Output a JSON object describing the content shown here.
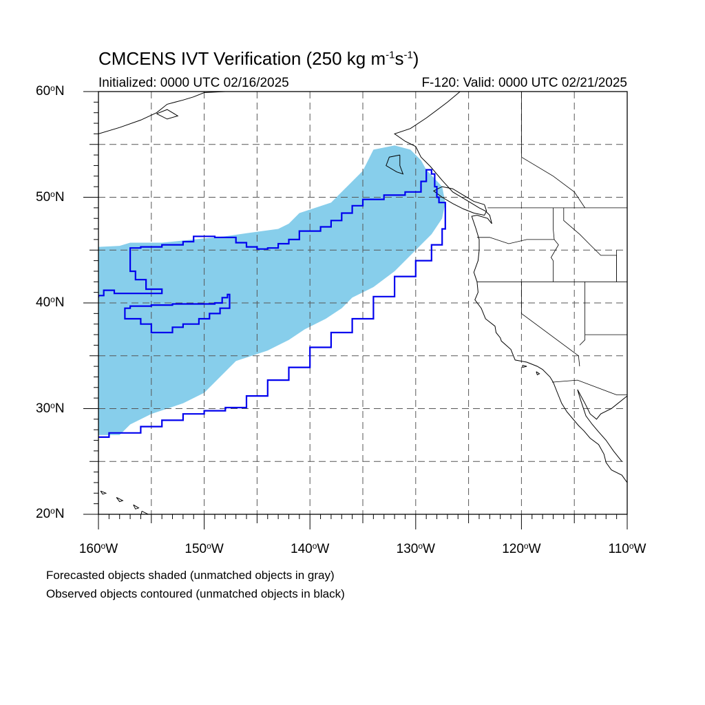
{
  "title": {
    "prefix": "CMCENS IVT Verification (250 kg m",
    "exp1": "-1",
    "mid": "s",
    "exp2": "-1",
    "suffix": ")"
  },
  "subtitle_left": "Initialized: 0000 UTC 02/16/2025",
  "subtitle_right": "F-120: Valid: 0000 UTC 02/21/2025",
  "lat_labels": [
    {
      "value": 60,
      "text": "60",
      "hemi": "N"
    },
    {
      "value": 50,
      "text": "50",
      "hemi": "N"
    },
    {
      "value": 40,
      "text": "40",
      "hemi": "N"
    },
    {
      "value": 30,
      "text": "30",
      "hemi": "N"
    },
    {
      "value": 20,
      "text": "20",
      "hemi": "N"
    }
  ],
  "lon_labels": [
    {
      "value": -160,
      "text": "160",
      "hemi": "W"
    },
    {
      "value": -150,
      "text": "150",
      "hemi": "W"
    },
    {
      "value": -140,
      "text": "140",
      "hemi": "W"
    },
    {
      "value": -130,
      "text": "130",
      "hemi": "W"
    },
    {
      "value": -120,
      "text": "120",
      "hemi": "W"
    },
    {
      "value": -110,
      "text": "110",
      "hemi": "W"
    }
  ],
  "notes": {
    "line1": "Forecasted objects shaded (unmatched objects in gray)",
    "line2": "Observed objects contoured (unmatched objects in black)"
  },
  "map_extent": {
    "lon_min": -160,
    "lon_max": -110,
    "lat_min": 20,
    "lat_max": 60
  },
  "colors": {
    "forecast_fill": "#87ceeb",
    "observed_contour": "#0000ee",
    "coastline": "#000000",
    "grid": "#555555"
  },
  "forecast_object": [
    [
      -160,
      45.3
    ],
    [
      -158,
      45.4
    ],
    [
      -157,
      45.7
    ],
    [
      -154,
      45.7
    ],
    [
      -151,
      46.0
    ],
    [
      -148,
      46.3
    ],
    [
      -146,
      46.6
    ],
    [
      -143,
      47.0
    ],
    [
      -142,
      47.5
    ],
    [
      -141,
      48.5
    ],
    [
      -139.5,
      49.0
    ],
    [
      -138,
      49.5
    ],
    [
      -137,
      50.5
    ],
    [
      -136,
      51.5
    ],
    [
      -135,
      52.5
    ],
    [
      -134,
      54.5
    ],
    [
      -132,
      54.9
    ],
    [
      -130.5,
      54.5
    ],
    [
      -129.5,
      53.5
    ],
    [
      -129,
      52.6
    ],
    [
      -127.5,
      51.0
    ],
    [
      -127.2,
      49.5
    ],
    [
      -127.5,
      48.0
    ],
    [
      -128.5,
      46.5
    ],
    [
      -130,
      45.0
    ],
    [
      -132,
      43.0
    ],
    [
      -134,
      41.5
    ],
    [
      -136,
      40.5
    ],
    [
      -137,
      39.5
    ],
    [
      -138.5,
      38.5
    ],
    [
      -140.5,
      37.5
    ],
    [
      -142,
      36.5
    ],
    [
      -144,
      35.5
    ],
    [
      -147,
      34.5
    ],
    [
      -149,
      32.5
    ],
    [
      -150,
      31.5
    ],
    [
      -152,
      30.5
    ],
    [
      -155,
      29.5
    ],
    [
      -157,
      28.5
    ],
    [
      -158,
      27.5
    ],
    [
      -160,
      27.5
    ]
  ],
  "observed_main": [
    [
      -160,
      27.3
    ],
    [
      -159,
      27.7
    ],
    [
      -156,
      28.3
    ],
    [
      -154,
      28.9
    ],
    [
      -152,
      29.5
    ],
    [
      -150,
      29.8
    ],
    [
      -148,
      30.1
    ],
    [
      -146,
      31.2
    ],
    [
      -144,
      32.7
    ],
    [
      -142,
      33.9
    ],
    [
      -140,
      35.8
    ],
    [
      -138,
      37.2
    ],
    [
      -136,
      38.5
    ],
    [
      -134,
      40.6
    ],
    [
      -132,
      42.5
    ],
    [
      -130,
      44.0
    ],
    [
      -128.5,
      45.5
    ],
    [
      -127.5,
      47.0
    ],
    [
      -127.2,
      48.5
    ],
    [
      -127.2,
      49.5
    ],
    [
      -127.8,
      50.0
    ],
    [
      -128,
      51.0
    ],
    [
      -128.2,
      52.2
    ],
    [
      -128.5,
      52.6
    ],
    [
      -129,
      51.5
    ],
    [
      -129.5,
      50.5
    ],
    [
      -131,
      50.2
    ],
    [
      -133,
      49.8
    ],
    [
      -135,
      49.2
    ],
    [
      -136,
      48.5
    ],
    [
      -137,
      47.8
    ],
    [
      -138,
      47.2
    ],
    [
      -139,
      46.8
    ],
    [
      -141,
      46.0
    ],
    [
      -142,
      45.6
    ],
    [
      -143,
      45.2
    ],
    [
      -144,
      45.1
    ],
    [
      -145,
      45.3
    ],
    [
      -146,
      45.7
    ],
    [
      -147,
      46.2
    ],
    [
      -148,
      46.2
    ],
    [
      -149,
      46.3
    ],
    [
      -151,
      46.3
    ],
    [
      -151,
      45.8
    ],
    [
      -152,
      45.5
    ],
    [
      -154,
      45.3
    ],
    [
      -156,
      45.2
    ],
    [
      -157,
      44.8
    ],
    [
      -157,
      43.0
    ],
    [
      -156.5,
      42.2
    ],
    [
      -155.5,
      41.3
    ],
    [
      -154,
      41.2
    ],
    [
      -154,
      40.9
    ],
    [
      -157,
      40.9
    ],
    [
      -158.5,
      41.2
    ],
    [
      -159.5,
      40.7
    ],
    [
      -160,
      40.5
    ]
  ],
  "observed_hole": [
    [
      -157.5,
      39.5
    ],
    [
      -157,
      39.7
    ],
    [
      -155,
      39.8
    ],
    [
      -153,
      39.9
    ],
    [
      -151,
      39.9
    ],
    [
      -149,
      40.0
    ],
    [
      -148.3,
      40.5
    ],
    [
      -147.8,
      40.8
    ],
    [
      -147.6,
      40.8
    ],
    [
      -147.6,
      39.5
    ],
    [
      -148.5,
      39.0
    ],
    [
      -149.5,
      38.5
    ],
    [
      -150.5,
      38.0
    ],
    [
      -152,
      37.7
    ],
    [
      -153,
      37.2
    ],
    [
      -154.5,
      37.2
    ],
    [
      -155,
      38.0
    ],
    [
      -156,
      38.5
    ],
    [
      -157.5,
      38.9
    ]
  ],
  "coastlines": [
    [
      [
        -125.8,
        60
      ],
      [
        -127,
        59
      ],
      [
        -129,
        57.5
      ],
      [
        -130.5,
        56.5
      ],
      [
        -132,
        56
      ],
      [
        -131,
        55.3
      ],
      [
        -130,
        54.8
      ],
      [
        -129.5,
        53.8
      ],
      [
        -128.6,
        52.9
      ],
      [
        -127.5,
        51.6
      ],
      [
        -126.5,
        50.5
      ],
      [
        -125,
        49.6
      ],
      [
        -124,
        49
      ],
      [
        -123.4,
        48.7
      ],
      [
        -123,
        48.3
      ],
      [
        -122.8,
        47.5
      ],
      [
        -123.2,
        48
      ],
      [
        -124.2,
        48.3
      ],
      [
        -124.7,
        48.2
      ],
      [
        -124.3,
        47
      ],
      [
        -124,
        46
      ],
      [
        -124,
        45
      ],
      [
        -124.1,
        44
      ],
      [
        -124.5,
        42.9
      ],
      [
        -124.2,
        42
      ],
      [
        -124.1,
        41
      ],
      [
        -124.4,
        40.3
      ],
      [
        -123.8,
        39.5
      ],
      [
        -123.4,
        38.5
      ],
      [
        -122.5,
        37.8
      ],
      [
        -122.4,
        37.2
      ],
      [
        -122,
        36.7
      ],
      [
        -121.9,
        36.4
      ],
      [
        -121,
        35.6
      ],
      [
        -120.6,
        34.6
      ],
      [
        -119.5,
        34.4
      ],
      [
        -118.5,
        34
      ],
      [
        -118,
        33.7
      ],
      [
        -117.3,
        33
      ],
      [
        -117,
        32.5
      ],
      [
        -116.6,
        31.5
      ],
      [
        -116.2,
        30.5
      ],
      [
        -115.7,
        29.7
      ],
      [
        -114.6,
        28.4
      ],
      [
        -114.1,
        27.9
      ],
      [
        -113.5,
        27.2
      ],
      [
        -112.7,
        26.6
      ],
      [
        -112.2,
        25.7
      ],
      [
        -112,
        24.9
      ],
      [
        -111.5,
        24.2
      ],
      [
        -110.5,
        23.7
      ],
      [
        -110,
        23
      ]
    ],
    [
      [
        -110,
        31.2
      ],
      [
        -111.5,
        30
      ],
      [
        -112.5,
        29.5
      ],
      [
        -112.9,
        29
      ],
      [
        -113.5,
        29.5
      ],
      [
        -114,
        30.5
      ],
      [
        -114.7,
        31.8
      ],
      [
        -114.4,
        30.8
      ],
      [
        -113.9,
        29.3
      ],
      [
        -113.3,
        28.5
      ],
      [
        -112.7,
        27.8
      ],
      [
        -112,
        27
      ],
      [
        -111.3,
        26
      ],
      [
        -110.5,
        25
      ]
    ],
    [
      [
        -123.5,
        49.3
      ],
      [
        -124.5,
        49.6
      ],
      [
        -125.5,
        50.2
      ],
      [
        -126.5,
        50.8
      ],
      [
        -127.5,
        51
      ],
      [
        -128.3,
        50.6
      ],
      [
        -127.5,
        50
      ],
      [
        -126.5,
        49.4
      ],
      [
        -125.5,
        48.9
      ],
      [
        -124.5,
        48.5
      ],
      [
        -123.5,
        48.3
      ],
      [
        -123.3,
        48.7
      ],
      [
        -123.5,
        49.3
      ]
    ],
    [
      [
        -131.5,
        54
      ],
      [
        -132.5,
        53.8
      ],
      [
        -132.8,
        53
      ],
      [
        -131.8,
        52.4
      ],
      [
        -131.2,
        52.2
      ],
      [
        -131.5,
        53
      ],
      [
        -131.5,
        54
      ]
    ],
    [
      [
        -160,
        56
      ],
      [
        -158,
        56.6
      ],
      [
        -156,
        57.3
      ],
      [
        -154.5,
        58
      ],
      [
        -153.5,
        58.8
      ],
      [
        -152,
        59.2
      ],
      [
        -151,
        59.5
      ],
      [
        -150,
        59.9
      ],
      [
        -148,
        60
      ]
    ],
    [
      [
        -154.5,
        57.9
      ],
      [
        -153.5,
        57.4
      ],
      [
        -152.5,
        57.7
      ],
      [
        -153.5,
        58.3
      ],
      [
        -154.5,
        57.9
      ]
    ],
    [
      [
        -155.9,
        20.3
      ],
      [
        -155.1,
        19.9
      ],
      [
        -155.5,
        19.4
      ],
      [
        -156,
        19.7
      ],
      [
        -155.9,
        20.3
      ]
    ],
    [
      [
        -156.7,
        20.9
      ],
      [
        -156.2,
        20.6
      ],
      [
        -156.5,
        20.5
      ],
      [
        -156.7,
        20.9
      ]
    ],
    [
      [
        -158.3,
        21.6
      ],
      [
        -157.7,
        21.3
      ],
      [
        -158,
        21.2
      ],
      [
        -158.3,
        21.6
      ]
    ],
    [
      [
        -159.8,
        22.2
      ],
      [
        -159.3,
        22
      ],
      [
        -159.6,
        21.9
      ],
      [
        -159.8,
        22.2
      ]
    ],
    [
      [
        -118.6,
        33.5
      ],
      [
        -118.3,
        33.3
      ],
      [
        -118.5,
        33.2
      ],
      [
        -118.6,
        33.5
      ]
    ],
    [
      [
        -119.9,
        34.1
      ],
      [
        -119.5,
        34
      ],
      [
        -119.9,
        33.9
      ],
      [
        -119.9,
        34.1
      ]
    ]
  ],
  "borders": [
    [
      [
        -123.2,
        49
      ],
      [
        -110,
        49
      ]
    ],
    [
      [
        -124.2,
        46.2
      ],
      [
        -123,
        46.2
      ],
      [
        -121.2,
        45.6
      ],
      [
        -119.5,
        46
      ],
      [
        -116.9,
        46
      ],
      [
        -117,
        47
      ],
      [
        -117,
        49
      ]
    ],
    [
      [
        -124.2,
        42
      ],
      [
        -111,
        42
      ]
    ],
    [
      [
        -120,
        42
      ],
      [
        -120,
        39
      ],
      [
        -114.6,
        35
      ],
      [
        -114.5,
        34
      ]
    ],
    [
      [
        -117.1,
        32.5
      ],
      [
        -114.7,
        32.7
      ],
      [
        -111,
        31.3
      ],
      [
        -110,
        31.3
      ]
    ],
    [
      [
        -116.9,
        46
      ],
      [
        -116.5,
        45.5
      ],
      [
        -117.2,
        44.3
      ],
      [
        -117,
        44
      ],
      [
        -117,
        42
      ]
    ],
    [
      [
        -116,
        49
      ],
      [
        -116,
        47.8
      ],
      [
        -114.5,
        46.5
      ],
      [
        -113.5,
        45.5
      ],
      [
        -112.5,
        44.5
      ],
      [
        -111,
        44.5
      ],
      [
        -111,
        42
      ]
    ],
    [
      [
        -114,
        42
      ],
      [
        -114,
        36.5
      ],
      [
        -114.5,
        36
      ]
    ],
    [
      [
        -111,
        45
      ],
      [
        -111,
        42
      ],
      [
        -110,
        42
      ]
    ],
    [
      [
        -114,
        37
      ],
      [
        -110,
        37
      ]
    ],
    [
      [
        -120,
        60
      ],
      [
        -120,
        53.8
      ],
      [
        -117,
        52
      ],
      [
        -115,
        50.5
      ],
      [
        -114,
        49
      ]
    ],
    [
      [
        -110,
        49
      ],
      [
        -110,
        60
      ]
    ]
  ]
}
